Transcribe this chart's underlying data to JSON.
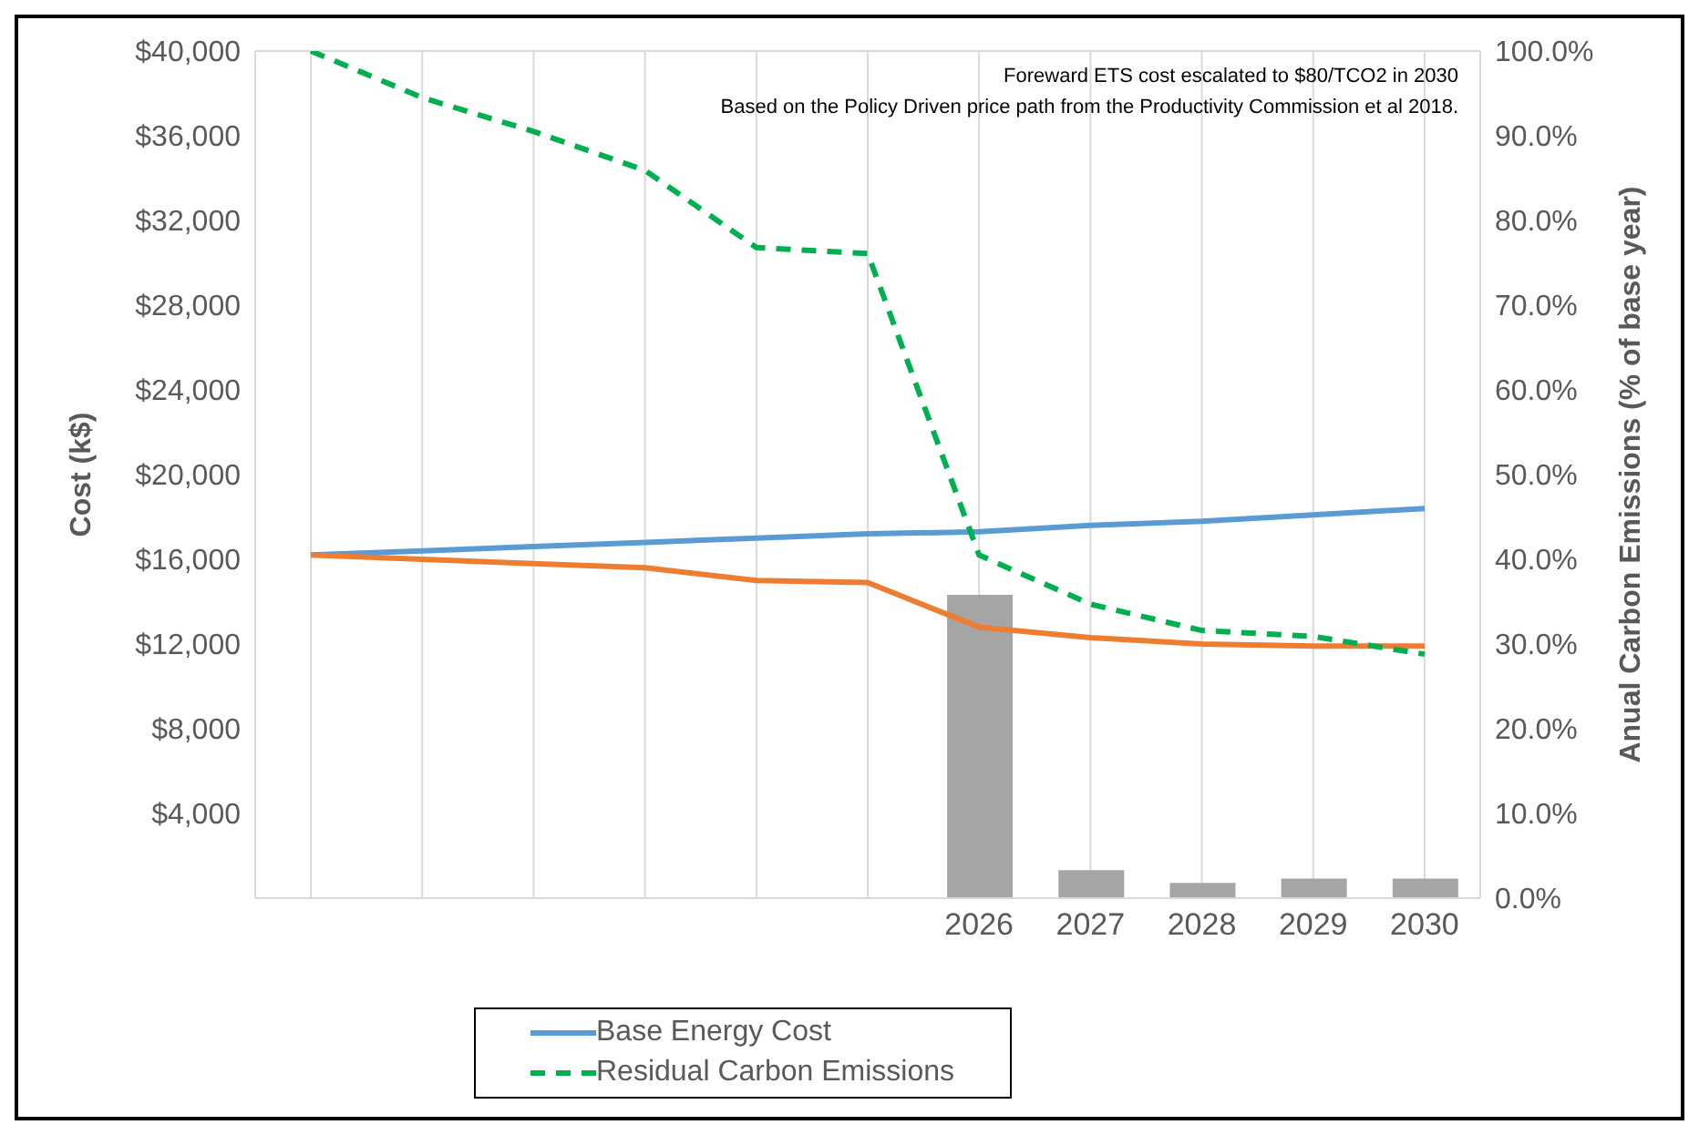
{
  "chart_data": {
    "type": "line",
    "ylabel": "Cost (k$)",
    "y2label": "Anual Carbon Emissions (% of base year)",
    "annotations": [
      "Foreward ETS cost escalated to $80/TCO2 in 2030",
      "Based on the Policy Driven price path from the Productivity Commission et al 2018."
    ],
    "categories": [
      null,
      null,
      null,
      null,
      null,
      null,
      "2026",
      "2027",
      "2028",
      "2029",
      "2030"
    ],
    "series": [
      {
        "type": "bar",
        "axis": "y2",
        "color": "#a5a5a5",
        "values": [
          null,
          null,
          null,
          null,
          null,
          null,
          35.8,
          3.3,
          1.8,
          2.3,
          2.3
        ]
      },
      {
        "name": "Base Energy Cost",
        "color": "#5b9bd5",
        "values": [
          16200,
          16400,
          16600,
          16800,
          17000,
          17200,
          17300,
          17600,
          17800,
          18100,
          18400
        ]
      },
      {
        "color": "#ed7d31",
        "values": [
          16200,
          16000,
          15800,
          15600,
          15000,
          14900,
          12800,
          12300,
          12000,
          11900,
          11900
        ]
      },
      {
        "name": "Residual Carbon Emissions",
        "axis": "y2",
        "color": "#00b050",
        "line_style": "dashed",
        "values": [
          100,
          94.5,
          90.5,
          85.9,
          76.8,
          76.1,
          40.5,
          34.7,
          31.6,
          30.9,
          28.8
        ]
      }
    ],
    "ylim": [
      0,
      40000
    ],
    "yticks": [
      {
        "value": 0,
        "label": null
      },
      {
        "value": 4000,
        "label": "$4,000"
      },
      {
        "value": 8000,
        "label": "$8,000"
      },
      {
        "value": 12000,
        "label": "$12,000"
      },
      {
        "value": 16000,
        "label": "$16,000"
      },
      {
        "value": 20000,
        "label": "$20,000"
      },
      {
        "value": 24000,
        "label": "$24,000"
      },
      {
        "value": 28000,
        "label": "$28,000"
      },
      {
        "value": 32000,
        "label": "$32,000"
      },
      {
        "value": 36000,
        "label": "$36,000"
      },
      {
        "value": 40000,
        "label": "$40,000"
      }
    ],
    "y2lim": [
      0,
      100
    ],
    "y2ticks": [
      {
        "value": 0,
        "label": "0.0%"
      },
      {
        "value": 10,
        "label": "10.0%"
      },
      {
        "value": 20,
        "label": "20.0%"
      },
      {
        "value": 30,
        "label": "30.0%"
      },
      {
        "value": 40,
        "label": "40.0%"
      },
      {
        "value": 50,
        "label": "50.0%"
      },
      {
        "value": 60,
        "label": "60.0%"
      },
      {
        "value": 70,
        "label": "70.0%"
      },
      {
        "value": 80,
        "label": "80.0%"
      },
      {
        "value": 90,
        "label": "90.0%"
      },
      {
        "value": 100,
        "label": "100.0%"
      }
    ],
    "grid": true,
    "legend": "bottom"
  }
}
